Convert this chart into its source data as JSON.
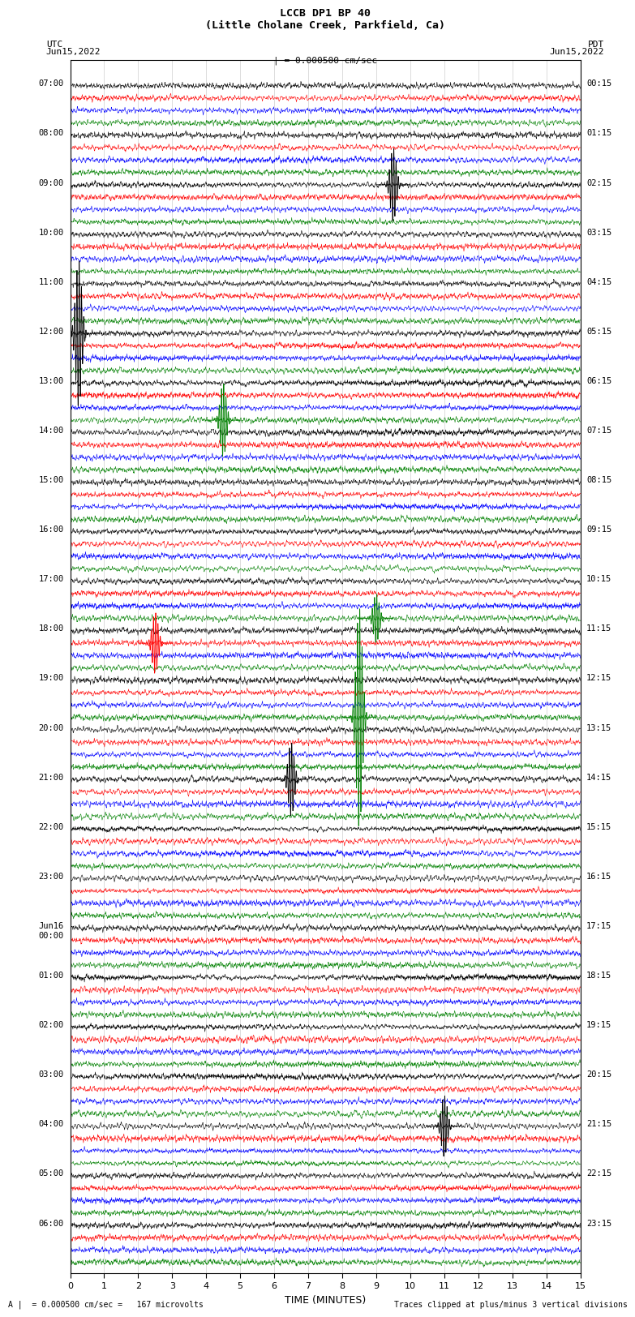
{
  "title_line1": "LCCB DP1 BP 40",
  "title_line2": "(Little Cholane Creek, Parkfield, Ca)",
  "left_label_line1": "UTC",
  "left_label_line2": "Jun15,2022",
  "right_label_line1": "PDT",
  "right_label_line2": "Jun15,2022",
  "scale_text": "| = 0.000500 cm/sec",
  "footer_left": "A |  = 0.000500 cm/sec =   167 microvolts",
  "footer_right": "Traces clipped at plus/minus 3 vertical divisions",
  "xlabel": "TIME (MINUTES)",
  "xlim": [
    0,
    15
  ],
  "xticks": [
    0,
    1,
    2,
    3,
    4,
    5,
    6,
    7,
    8,
    9,
    10,
    11,
    12,
    13,
    14,
    15
  ],
  "num_hour_groups": 24,
  "traces_per_group": 4,
  "colors": [
    "black",
    "red",
    "blue",
    "green"
  ],
  "background_color": "white",
  "left_times_utc": [
    "07:00",
    "08:00",
    "09:00",
    "10:00",
    "11:00",
    "12:00",
    "13:00",
    "14:00",
    "15:00",
    "16:00",
    "17:00",
    "18:00",
    "19:00",
    "20:00",
    "21:00",
    "22:00",
    "23:00",
    "Jun16\n00:00",
    "01:00",
    "02:00",
    "03:00",
    "04:00",
    "05:00",
    "06:00"
  ],
  "right_times_pdt": [
    "00:15",
    "01:15",
    "02:15",
    "03:15",
    "04:15",
    "05:15",
    "06:15",
    "07:15",
    "08:15",
    "09:15",
    "10:15",
    "11:15",
    "12:15",
    "13:15",
    "14:15",
    "15:15",
    "16:15",
    "17:15",
    "18:15",
    "19:15",
    "20:15",
    "21:15",
    "22:15",
    "23:15"
  ]
}
